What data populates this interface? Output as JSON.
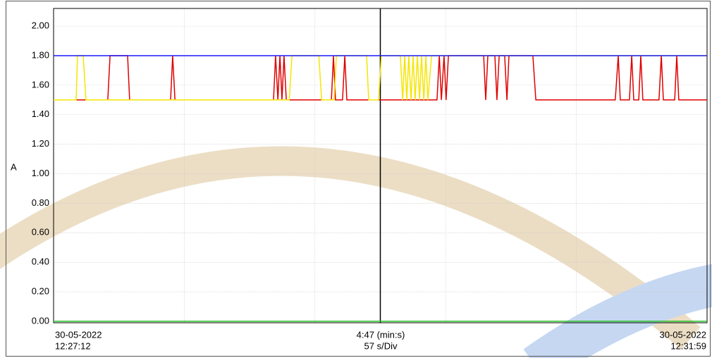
{
  "chart_data": {
    "type": "line",
    "y_label": "A",
    "x_labels": {
      "left": [
        "30-05-2022",
        "12:27:12"
      ],
      "center": [
        "4:47 (min:s)",
        "57 s/Div"
      ],
      "right": [
        "30-05-2022",
        "12:31:59"
      ]
    },
    "xlim": [
      0,
      287
    ],
    "xticks": [
      0,
      57.4,
      114.8,
      172.2,
      229.6,
      287
    ],
    "ylim": [
      -0.01,
      2.12
    ],
    "yticks": [
      {
        "value": 0,
        "label": "0.00"
      },
      {
        "value": 0.2,
        "label": "0.20"
      },
      {
        "value": 0.4,
        "label": "0.40"
      },
      {
        "value": 0.6,
        "label": "0.60"
      },
      {
        "value": 0.8,
        "label": "0.80"
      },
      {
        "value": 1.0,
        "label": "1.00"
      },
      {
        "value": 1.2,
        "label": "1.20"
      },
      {
        "value": 1.4,
        "label": "1.40"
      },
      {
        "value": 1.6,
        "label": "1.60"
      },
      {
        "value": 1.8,
        "label": "1.80"
      },
      {
        "value": 2.0,
        "label": "2.00"
      }
    ],
    "grid": true,
    "series": [
      {
        "color": "#e00000",
        "x": [
          0,
          23.8,
          24.8,
          32.5,
          33.4,
          51.4,
          52.3,
          53.3,
          96.6,
          97.5,
          98.5,
          99.4,
          100.3,
          101.2,
          102.2,
          122.0,
          122.9,
          123.8,
          126.9,
          127.9,
          128.8,
          168.4,
          169.4,
          170.3,
          171.5,
          172.4,
          173.4,
          188.9,
          189.8,
          190.7,
          193.8,
          194.7,
          195.7,
          198.1,
          199.1,
          200.0,
          210.5,
          211.8,
          246.7,
          248.0,
          248.9,
          252.9,
          253.9,
          254.8,
          257.0,
          257.9,
          258.8,
          265.9,
          266.9,
          267.8,
          272.8,
          273.7,
          274.6,
          287
        ],
        "values": [
          1.5,
          1.5,
          1.8,
          1.8,
          1.5,
          1.5,
          1.8,
          1.5,
          1.5,
          1.8,
          1.5,
          1.8,
          1.5,
          1.8,
          1.5,
          1.5,
          1.8,
          1.5,
          1.5,
          1.8,
          1.5,
          1.5,
          1.8,
          1.5,
          1.8,
          1.5,
          1.8,
          1.8,
          1.5,
          1.8,
          1.8,
          1.5,
          1.8,
          1.8,
          1.5,
          1.8,
          1.8,
          1.5,
          1.5,
          1.8,
          1.5,
          1.5,
          1.8,
          1.5,
          1.5,
          1.8,
          1.5,
          1.5,
          1.8,
          1.5,
          1.5,
          1.8,
          1.5,
          1.5
        ]
      },
      {
        "color": "#f5e600",
        "x": [
          0,
          9.9,
          10.5,
          13.0,
          14.2,
          103.5,
          104.7,
          116.5,
          117.7,
          123.2,
          124.2,
          137.5,
          138.4,
          142.7,
          144.0,
          152.3,
          153.3,
          154.2,
          155.1,
          156.0,
          157.0,
          157.9,
          158.8,
          159.8,
          160.7,
          161.6,
          162.6,
          163.5,
          164.4,
          166.0,
          287
        ],
        "values": [
          1.5,
          1.5,
          1.8,
          1.8,
          1.5,
          1.5,
          1.8,
          1.8,
          1.5,
          1.5,
          1.8,
          1.8,
          1.5,
          1.5,
          1.8,
          1.8,
          1.5,
          1.8,
          1.5,
          1.8,
          1.5,
          1.8,
          1.5,
          1.8,
          1.5,
          1.8,
          1.5,
          1.8,
          1.5,
          1.8,
          1.8
        ]
      },
      {
        "color": "#1a1aff",
        "x": [
          0,
          287
        ],
        "values": [
          1.8,
          1.8
        ]
      },
      {
        "color": "#20c020",
        "x": [
          0,
          287
        ],
        "values": [
          0,
          0
        ]
      }
    ]
  }
}
